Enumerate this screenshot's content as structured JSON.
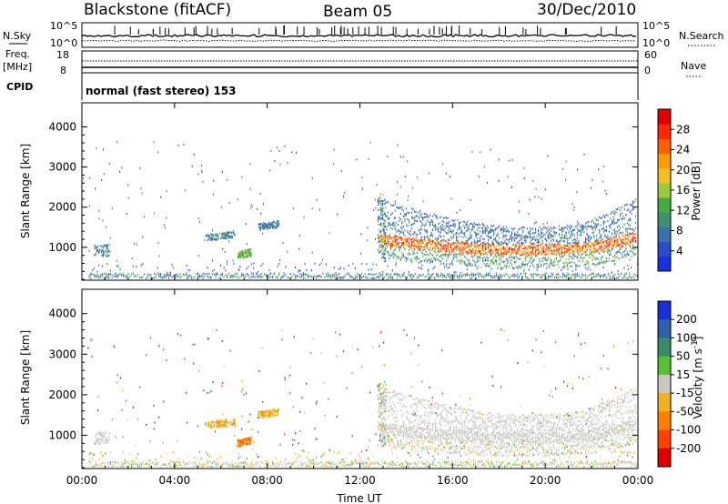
{
  "header": {
    "station": "Blackstone (fitACF)",
    "beam": "Beam 05",
    "date": "30/Dec/2010"
  },
  "top_panels": {
    "nsky": {
      "label": "N.Sky",
      "ticks_left": [
        "10^5",
        "10^0"
      ],
      "ticks_right": [
        "10^5",
        "10^0"
      ],
      "right_label": "N.Search"
    },
    "freq": {
      "label_line1": "Freq.",
      "label_line2": "[MHz]",
      "ticks_left": [
        "18",
        "8"
      ],
      "ticks_right": [
        "60",
        "0"
      ],
      "right_label": "Nave"
    },
    "cpid": {
      "label": "CPID",
      "text": "normal (fast stereo) 153"
    }
  },
  "chart_data": [
    {
      "type": "heatmap",
      "panel": "power",
      "ylabel": "Slant Range [km]",
      "xlabel": "",
      "x_ticks": [
        "00:00",
        "04:00",
        "08:00",
        "12:00",
        "16:00",
        "20:00",
        "00:00"
      ],
      "x_hours": [
        0,
        24
      ],
      "y_ticks": [
        "1000",
        "2000",
        "3000",
        "4000"
      ],
      "y_tick_values": [
        1000,
        2000,
        3000,
        4000
      ],
      "ylim": [
        180,
        4600
      ],
      "colorbar": {
        "label": "Power [dB]",
        "ticks": [
          "4",
          "8",
          "12",
          "16",
          "20",
          "24",
          "28"
        ],
        "min": 0,
        "max": 32,
        "colors": [
          "#1a2fe0",
          "#2a4cc8",
          "#3a6fb0",
          "#3f8f70",
          "#44aa44",
          "#9acb3c",
          "#f0c020",
          "#ff9a00",
          "#ff6000",
          "#ff2800",
          "#e00000"
        ]
      },
      "features": [
        {
          "desc": "ground band",
          "t0": 0.3,
          "t1": 24,
          "r0": 200,
          "r1": 320,
          "value": 8
        },
        {
          "desc": "patch",
          "t0": 5.3,
          "t1": 6.6,
          "r0": 1150,
          "r1": 1300,
          "value": 8
        },
        {
          "desc": "patch",
          "t0": 7.6,
          "t1": 8.5,
          "r0": 1400,
          "r1": 1550,
          "value": 8
        },
        {
          "desc": "patch",
          "t0": 6.8,
          "t1": 7.3,
          "r0": 700,
          "r1": 850,
          "value": 12
        },
        {
          "desc": "patch",
          "t0": 0.5,
          "t1": 1.2,
          "r0": 800,
          "r1": 1000,
          "value": 8
        },
        {
          "desc": "main band",
          "t0": 12.8,
          "t1": 23.9,
          "r0": 900,
          "r1": 1250,
          "value": 28
        },
        {
          "desc": "upper edge",
          "t0": 12.8,
          "t1": 23.9,
          "r0": 1250,
          "r1": 2300,
          "value": 6
        }
      ]
    },
    {
      "type": "heatmap",
      "panel": "velocity",
      "ylabel": "Slant Range [km]",
      "xlabel": "Time UT",
      "x_ticks": [
        "00:00",
        "04:00",
        "08:00",
        "12:00",
        "16:00",
        "20:00",
        "00:00"
      ],
      "x_hours": [
        0,
        24
      ],
      "y_ticks": [
        "1000",
        "2000",
        "3000",
        "4000"
      ],
      "y_tick_values": [
        1000,
        2000,
        3000,
        4000
      ],
      "ylim": [
        180,
        4600
      ],
      "colorbar": {
        "label": "Velocity [m s^-1]",
        "ticks": [
          "200",
          "100",
          "50",
          "15",
          "-15",
          "-50",
          "-100",
          "-200"
        ],
        "colors": [
          "#1a2fd8",
          "#2e5fa8",
          "#3a8a6a",
          "#55c030",
          "#c8c8c0",
          "#f0b020",
          "#ff8000",
          "#ff4000",
          "#e00000"
        ]
      },
      "features": [
        {
          "desc": "ground band",
          "t0": 0.3,
          "t1": 24,
          "r0": 200,
          "r1": 320,
          "value": 0
        },
        {
          "desc": "patch",
          "t0": 5.3,
          "t1": 6.6,
          "r0": 1150,
          "r1": 1300,
          "value": -50
        },
        {
          "desc": "patch",
          "t0": 7.6,
          "t1": 8.5,
          "r0": 1400,
          "r1": 1550,
          "value": -50
        },
        {
          "desc": "patch",
          "t0": 6.8,
          "t1": 7.3,
          "r0": 700,
          "r1": 850,
          "value": -100
        },
        {
          "desc": "main band",
          "t0": 12.8,
          "t1": 23.9,
          "r0": 900,
          "r1": 2300,
          "value": 0
        }
      ]
    }
  ]
}
